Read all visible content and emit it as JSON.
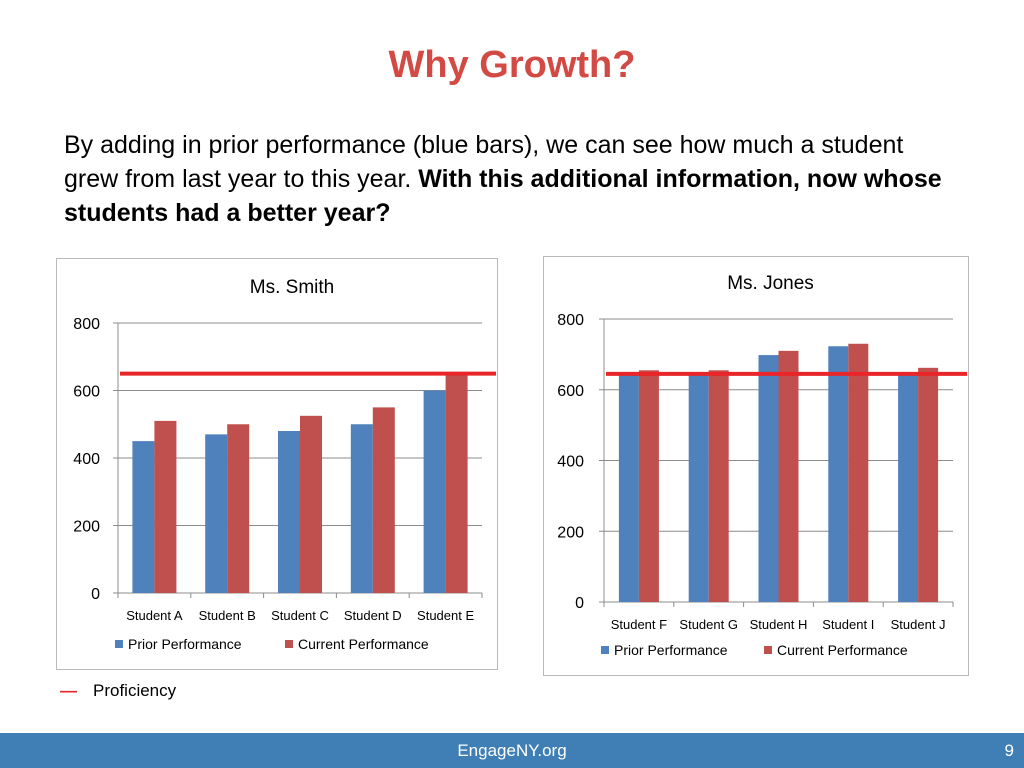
{
  "slide": {
    "title": "Why Growth?",
    "intro_normal": "By adding in prior performance (blue bars), we can see how much a student grew from last year to this year. ",
    "intro_bold": "With this additional information, now whose students had a better year?",
    "legend_note": "Proficiency",
    "footer_site": "EngageNY.org",
    "page_number": "9"
  },
  "colors": {
    "title": "#d24a43",
    "prior": "#4f81bd",
    "current": "#c0504d",
    "proficiency_line": "#e8262a",
    "footer": "#3f7fb6"
  },
  "chart_data": [
    {
      "type": "bar",
      "title": "Ms. Smith",
      "categories": [
        "Student A",
        "Student B",
        "Student C",
        "Student D",
        "Student E"
      ],
      "series": [
        {
          "name": "Prior Performance",
          "values": [
            450,
            470,
            480,
            500,
            600
          ]
        },
        {
          "name": "Current Performance",
          "values": [
            510,
            500,
            525,
            550,
            650
          ]
        }
      ],
      "ylim": [
        0,
        800
      ],
      "yticks": [
        0,
        200,
        400,
        600,
        800
      ],
      "grid": true,
      "legend": "bottom",
      "proficiency_line": 650
    },
    {
      "type": "bar",
      "title": "Ms. Jones",
      "categories": [
        "Student F",
        "Student G",
        "Student H",
        "Student I",
        "Student J"
      ],
      "series": [
        {
          "name": "Prior Performance",
          "values": [
            645,
            645,
            698,
            723,
            645
          ]
        },
        {
          "name": "Current Performance",
          "values": [
            655,
            655,
            710,
            730,
            662
          ]
        }
      ],
      "ylim": [
        0,
        800
      ],
      "yticks": [
        0,
        200,
        400,
        600,
        800
      ],
      "grid": true,
      "legend": "bottom",
      "proficiency_line": 645
    }
  ]
}
